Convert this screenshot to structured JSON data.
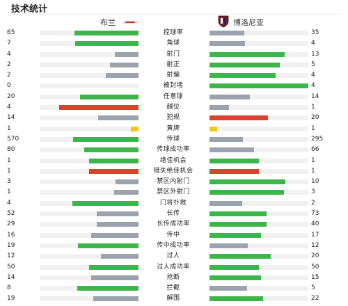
{
  "header": {
    "title": "技术统计"
  },
  "teams": {
    "home": {
      "name": "布兰"
    },
    "away": {
      "name": "博洛尼亚"
    }
  },
  "colors": {
    "win": "#3db54a",
    "lose": "#9aa3ae",
    "red": "#d9432b",
    "yellow": "#f5c518"
  },
  "stats": [
    {
      "label": "控球率",
      "home": "65",
      "away": "35",
      "home_ratio": 0.65,
      "away_ratio": 0.35,
      "home_color": "win",
      "away_color": "lose"
    },
    {
      "label": "角球",
      "home": "7",
      "away": "4",
      "home_ratio": 0.64,
      "away_ratio": 0.36,
      "home_color": "win",
      "away_color": "lose"
    },
    {
      "label": "射门",
      "home": "4",
      "away": "13",
      "home_ratio": 0.24,
      "away_ratio": 0.76,
      "home_color": "lose",
      "away_color": "win"
    },
    {
      "label": "射正",
      "home": "2",
      "away": "5",
      "home_ratio": 0.29,
      "away_ratio": 0.71,
      "home_color": "lose",
      "away_color": "win"
    },
    {
      "label": "射偏",
      "home": "2",
      "away": "4",
      "home_ratio": 0.33,
      "away_ratio": 0.67,
      "home_color": "lose",
      "away_color": "win"
    },
    {
      "label": "被封堵",
      "home": "0",
      "away": "4",
      "home_ratio": 0,
      "away_ratio": 1,
      "home_color": "lose",
      "away_color": "win"
    },
    {
      "label": "任意球",
      "home": "20",
      "away": "14",
      "home_ratio": 0.59,
      "away_ratio": 0.41,
      "home_color": "win",
      "away_color": "lose"
    },
    {
      "label": "越位",
      "home": "4",
      "away": "1",
      "home_ratio": 0.8,
      "away_ratio": 0.2,
      "home_color": "red",
      "away_color": "lose"
    },
    {
      "label": "犯规",
      "home": "14",
      "away": "20",
      "home_ratio": 0.41,
      "away_ratio": 0.59,
      "home_color": "lose",
      "away_color": "red"
    },
    {
      "label": "黄牌",
      "home": "1",
      "away": "1",
      "home_ratio": 0.08,
      "away_ratio": 0.08,
      "home_color": "yellow",
      "away_color": "yellow"
    },
    {
      "label": "传球",
      "home": "570",
      "away": "295",
      "home_ratio": 0.66,
      "away_ratio": 0.34,
      "home_color": "win",
      "away_color": "lose"
    },
    {
      "label": "传球成功率",
      "home": "80",
      "away": "66",
      "home_ratio": 0.55,
      "away_ratio": 0.45,
      "home_color": "win",
      "away_color": "lose"
    },
    {
      "label": "绝佳机会",
      "home": "1",
      "away": "1",
      "home_ratio": 0.5,
      "away_ratio": 0.5,
      "home_color": "win",
      "away_color": "win"
    },
    {
      "label": "错失绝佳机会",
      "home": "1",
      "away": "1",
      "home_ratio": 0.5,
      "away_ratio": 0.5,
      "home_color": "red",
      "away_color": "red"
    },
    {
      "label": "禁区内射门",
      "home": "3",
      "away": "10",
      "home_ratio": 0.23,
      "away_ratio": 0.77,
      "home_color": "lose",
      "away_color": "win"
    },
    {
      "label": "禁区外射门",
      "home": "1",
      "away": "3",
      "home_ratio": 0.25,
      "away_ratio": 0.75,
      "home_color": "lose",
      "away_color": "win"
    },
    {
      "label": "门将扑救",
      "home": "4",
      "away": "2",
      "home_ratio": 0.67,
      "away_ratio": 0.33,
      "home_color": "win",
      "away_color": "lose"
    },
    {
      "label": "长传",
      "home": "52",
      "away": "73",
      "home_ratio": 0.42,
      "away_ratio": 0.58,
      "home_color": "lose",
      "away_color": "win"
    },
    {
      "label": "长传成功率",
      "home": "29",
      "away": "40",
      "home_ratio": 0.42,
      "away_ratio": 0.58,
      "home_color": "lose",
      "away_color": "win"
    },
    {
      "label": "传中",
      "home": "16",
      "away": "17",
      "home_ratio": 0.48,
      "away_ratio": 0.52,
      "home_color": "lose",
      "away_color": "win"
    },
    {
      "label": "传中成功率",
      "home": "19",
      "away": "12",
      "home_ratio": 0.61,
      "away_ratio": 0.39,
      "home_color": "win",
      "away_color": "lose"
    },
    {
      "label": "过人",
      "home": "12",
      "away": "20",
      "home_ratio": 0.38,
      "away_ratio": 0.62,
      "home_color": "lose",
      "away_color": "win"
    },
    {
      "label": "过人成功率",
      "home": "50",
      "away": "50",
      "home_ratio": 0.5,
      "away_ratio": 0.5,
      "home_color": "win",
      "away_color": "win"
    },
    {
      "label": "抢断",
      "home": "14",
      "away": "15",
      "home_ratio": 0.48,
      "away_ratio": 0.52,
      "home_color": "lose",
      "away_color": "win"
    },
    {
      "label": "拦截",
      "home": "8",
      "away": "5",
      "home_ratio": 0.62,
      "away_ratio": 0.38,
      "home_color": "win",
      "away_color": "lose"
    },
    {
      "label": "解围",
      "home": "19",
      "away": "22",
      "home_ratio": 0.46,
      "away_ratio": 0.54,
      "home_color": "lose",
      "away_color": "win"
    }
  ]
}
